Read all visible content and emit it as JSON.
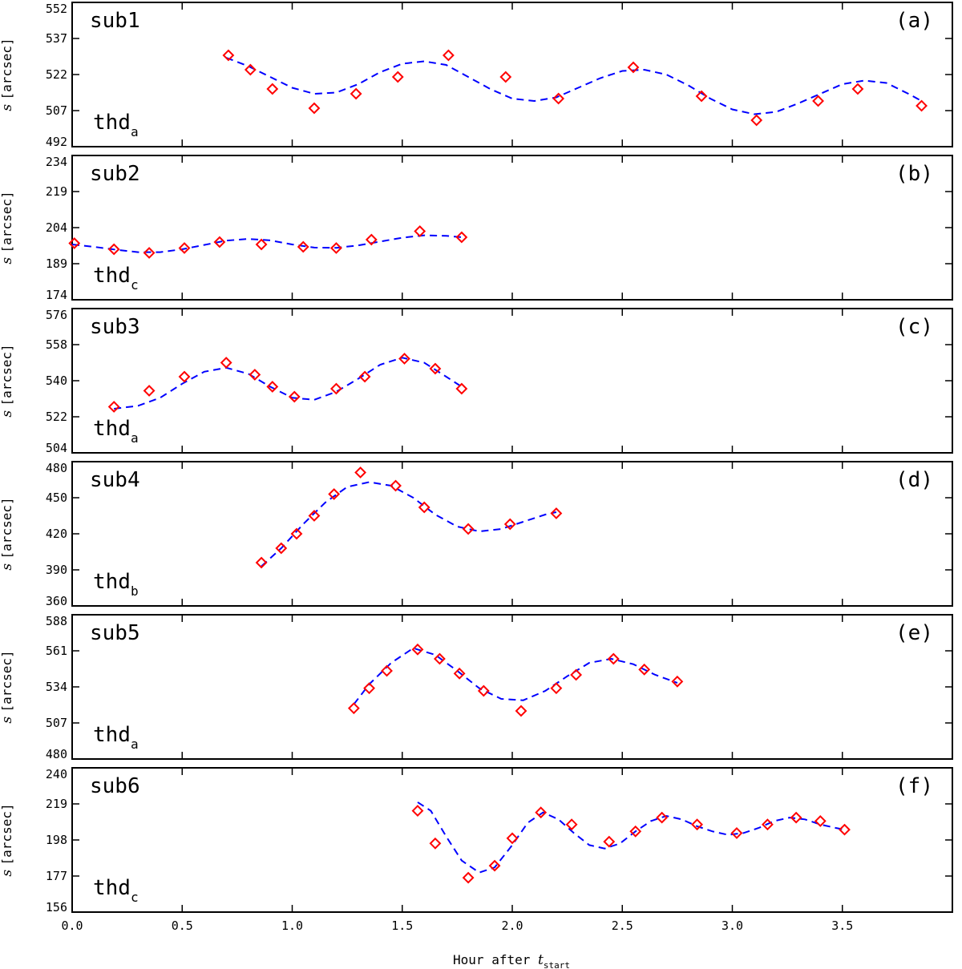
{
  "figure": {
    "xlabel_text": "Hour after ",
    "xlabel_var": "t",
    "xlabel_sub": "start",
    "ylabel_var": "s",
    "ylabel_unit": "[arcsec]"
  },
  "colors": {
    "data_marker": "#ff0000",
    "fit_line": "#0000ff",
    "axes": "#000000"
  },
  "chart_data": [
    {
      "type": "scatter",
      "title": "sub1",
      "panel_tag": "(a)",
      "thread": "thd",
      "thread_sub": "a",
      "xlabel": "Hour after t_start",
      "ylabel": "s [arcsec]",
      "xlim": [
        0,
        4.0
      ],
      "ylim": [
        492,
        552
      ],
      "xticks": [
        "0.0",
        "0.5",
        "1.0",
        "1.5",
        "2.0",
        "2.5",
        "3.0",
        "3.5"
      ],
      "yticks": [
        "492",
        "507",
        "522",
        "537",
        "552"
      ],
      "series": [
        {
          "name": "measured",
          "marker": "diamond",
          "x": [
            0.71,
            0.81,
            0.91,
            1.1,
            1.29,
            1.48,
            1.71,
            1.97,
            2.21,
            2.55,
            2.86,
            3.11,
            3.39,
            3.57,
            3.86
          ],
          "y": [
            530,
            524,
            516,
            508,
            514,
            521,
            530,
            521,
            512,
            525,
            513,
            503,
            511,
            516,
            509
          ]
        },
        {
          "name": "damped sine fit",
          "style": "dashed",
          "x": [
            0.7,
            0.8,
            0.9,
            1.0,
            1.1,
            1.2,
            1.3,
            1.4,
            1.5,
            1.6,
            1.7,
            1.8,
            1.9,
            2.0,
            2.1,
            2.2,
            2.3,
            2.4,
            2.5,
            2.6,
            2.7,
            2.8,
            2.9,
            3.0,
            3.1,
            3.2,
            3.3,
            3.4,
            3.5,
            3.6,
            3.7,
            3.8,
            3.86
          ],
          "y": [
            529,
            525.5,
            521,
            516.5,
            514,
            514.5,
            518,
            523,
            526.5,
            527.5,
            526,
            521,
            516,
            512,
            511,
            512.5,
            516.5,
            520.5,
            523.5,
            524,
            522,
            517.5,
            512,
            507.5,
            505.5,
            506.5,
            510,
            514,
            518,
            519.5,
            518.5,
            514,
            511
          ]
        }
      ]
    },
    {
      "type": "scatter",
      "title": "sub2",
      "panel_tag": "(b)",
      "thread": "thd",
      "thread_sub": "c",
      "xlabel": "Hour after t_start",
      "ylabel": "s [arcsec]",
      "xlim": [
        0,
        4.0
      ],
      "ylim": [
        174,
        234
      ],
      "xticks": [
        "0.0",
        "0.5",
        "1.0",
        "1.5",
        "2.0",
        "2.5",
        "3.0",
        "3.5"
      ],
      "yticks": [
        "174",
        "189",
        "204",
        "219",
        "234"
      ],
      "series": [
        {
          "name": "measured",
          "marker": "diamond",
          "x": [
            0.01,
            0.19,
            0.35,
            0.51,
            0.67,
            0.86,
            1.05,
            1.2,
            1.36,
            1.58,
            1.77
          ],
          "y": [
            197.5,
            195,
            193.5,
            195.5,
            198,
            197,
            196,
            195.5,
            199,
            202.5,
            200
          ]
        },
        {
          "name": "damped sine fit",
          "style": "dashed",
          "x": [
            0.0,
            0.1,
            0.2,
            0.3,
            0.4,
            0.5,
            0.6,
            0.7,
            0.8,
            0.9,
            1.0,
            1.1,
            1.2,
            1.3,
            1.4,
            1.5,
            1.6,
            1.7,
            1.77
          ],
          "y": [
            197,
            196,
            194.8,
            193.8,
            193.8,
            195,
            196.8,
            198.6,
            199.3,
            198.7,
            197,
            195.7,
            195.6,
            196.6,
            198.2,
            199.8,
            200.8,
            200.6,
            200
          ]
        }
      ]
    },
    {
      "type": "scatter",
      "title": "sub3",
      "panel_tag": "(c)",
      "thread": "thd",
      "thread_sub": "a",
      "xlabel": "Hour after t_start",
      "ylabel": "s [arcsec]",
      "xlim": [
        0,
        4.0
      ],
      "ylim": [
        504,
        576
      ],
      "xticks": [
        "0.0",
        "0.5",
        "1.0",
        "1.5",
        "2.0",
        "2.5",
        "3.0",
        "3.5"
      ],
      "yticks": [
        "504",
        "522",
        "540",
        "558",
        "576"
      ],
      "series": [
        {
          "name": "measured",
          "marker": "diamond",
          "x": [
            0.19,
            0.35,
            0.51,
            0.7,
            0.83,
            0.91,
            1.01,
            1.2,
            1.33,
            1.51,
            1.65,
            1.77
          ],
          "y": [
            527,
            535,
            542,
            549,
            543,
            537,
            532,
            536,
            542,
            551,
            546,
            536
          ]
        },
        {
          "name": "damped sine fit",
          "style": "dashed",
          "x": [
            0.19,
            0.3,
            0.4,
            0.5,
            0.6,
            0.7,
            0.8,
            0.9,
            1.0,
            1.1,
            1.2,
            1.3,
            1.4,
            1.5,
            1.6,
            1.7,
            1.77
          ],
          "y": [
            526,
            527.5,
            531.5,
            538.5,
            544.5,
            546.5,
            543.5,
            537,
            531.5,
            530.5,
            534.5,
            541,
            548,
            551.5,
            549,
            542,
            537
          ]
        }
      ]
    },
    {
      "type": "scatter",
      "title": "sub4",
      "panel_tag": "(d)",
      "thread": "thd",
      "thread_sub": "b",
      "xlabel": "Hour after t_start",
      "ylabel": "s [arcsec]",
      "xlim": [
        0,
        4.0
      ],
      "ylim": [
        360,
        480
      ],
      "xticks": [
        "0.0",
        "0.5",
        "1.0",
        "1.5",
        "2.0",
        "2.5",
        "3.0",
        "3.5"
      ],
      "yticks": [
        "360",
        "390",
        "420",
        "450",
        "480"
      ],
      "series": [
        {
          "name": "measured",
          "marker": "diamond",
          "x": [
            0.86,
            0.95,
            1.02,
            1.1,
            1.19,
            1.31,
            1.47,
            1.6,
            1.8,
            1.99,
            2.2
          ],
          "y": [
            396,
            408,
            420,
            435,
            453,
            471,
            460,
            442,
            424,
            428,
            437
          ]
        },
        {
          "name": "damped sine fit",
          "style": "dashed",
          "x": [
            0.86,
            0.95,
            1.05,
            1.15,
            1.25,
            1.35,
            1.45,
            1.55,
            1.65,
            1.75,
            1.85,
            1.95,
            2.05,
            2.15,
            2.2
          ],
          "y": [
            393,
            408,
            428,
            446,
            459,
            463,
            460,
            450,
            436,
            426,
            422,
            424,
            430,
            436,
            438
          ]
        }
      ]
    },
    {
      "type": "scatter",
      "title": "sub5",
      "panel_tag": "(e)",
      "thread": "thd",
      "thread_sub": "a",
      "xlabel": "Hour after t_start",
      "ylabel": "s [arcsec]",
      "xlim": [
        0,
        4.0
      ],
      "ylim": [
        480,
        588
      ],
      "xticks": [
        "0.0",
        "0.5",
        "1.0",
        "1.5",
        "2.0",
        "2.5",
        "3.0",
        "3.5"
      ],
      "yticks": [
        "480",
        "507",
        "534",
        "561",
        "588"
      ],
      "series": [
        {
          "name": "measured",
          "marker": "diamond",
          "x": [
            1.28,
            1.35,
            1.43,
            1.57,
            1.67,
            1.76,
            1.87,
            2.04,
            2.2,
            2.29,
            2.46,
            2.6,
            2.75
          ],
          "y": [
            518,
            533,
            546,
            562,
            555,
            544,
            531,
            516,
            533,
            543,
            555,
            547,
            538
          ]
        },
        {
          "name": "damped sine fit",
          "style": "dashed",
          "x": [
            1.28,
            1.35,
            1.45,
            1.55,
            1.65,
            1.75,
            1.85,
            1.95,
            2.05,
            2.15,
            2.25,
            2.35,
            2.45,
            2.55,
            2.65,
            2.75
          ],
          "y": [
            521,
            536,
            552,
            563,
            558,
            546,
            533,
            525,
            524,
            531,
            542,
            552,
            555,
            551,
            543,
            537
          ]
        }
      ]
    },
    {
      "type": "scatter",
      "title": "sub6",
      "panel_tag": "(f)",
      "thread": "thd",
      "thread_sub": "c",
      "xlabel": "Hour after t_start",
      "ylabel": "s [arcsec]",
      "xlim": [
        0,
        4.0
      ],
      "ylim": [
        156,
        240
      ],
      "xticks": [
        "0.0",
        "0.5",
        "1.0",
        "1.5",
        "2.0",
        "2.5",
        "3.0",
        "3.5"
      ],
      "yticks": [
        "156",
        "177",
        "198",
        "219",
        "240"
      ],
      "series": [
        {
          "name": "measured",
          "marker": "diamond",
          "x": [
            1.57,
            1.65,
            1.8,
            1.92,
            2.0,
            2.13,
            2.27,
            2.44,
            2.56,
            2.68,
            2.84,
            3.02,
            3.16,
            3.29,
            3.4,
            3.51
          ],
          "y": [
            215,
            196,
            176,
            183,
            199,
            214,
            207,
            197,
            203,
            211,
            207,
            202,
            207,
            211,
            209,
            204
          ]
        },
        {
          "name": "damped sine fit",
          "style": "dashed",
          "x": [
            1.57,
            1.63,
            1.7,
            1.77,
            1.85,
            1.92,
            2.0,
            2.07,
            2.14,
            2.21,
            2.28,
            2.35,
            2.42,
            2.49,
            2.56,
            2.63,
            2.7,
            2.77,
            2.84,
            2.91,
            2.98,
            3.05,
            3.12,
            3.19,
            3.26,
            3.33,
            3.4,
            3.47,
            3.51
          ],
          "y": [
            220,
            215,
            200,
            186,
            179,
            182,
            195,
            208,
            214,
            210,
            202,
            195,
            193,
            196,
            203,
            209,
            212,
            210,
            206,
            203,
            201,
            202,
            205,
            209,
            211,
            210,
            207,
            205,
            204
          ]
        }
      ]
    }
  ]
}
